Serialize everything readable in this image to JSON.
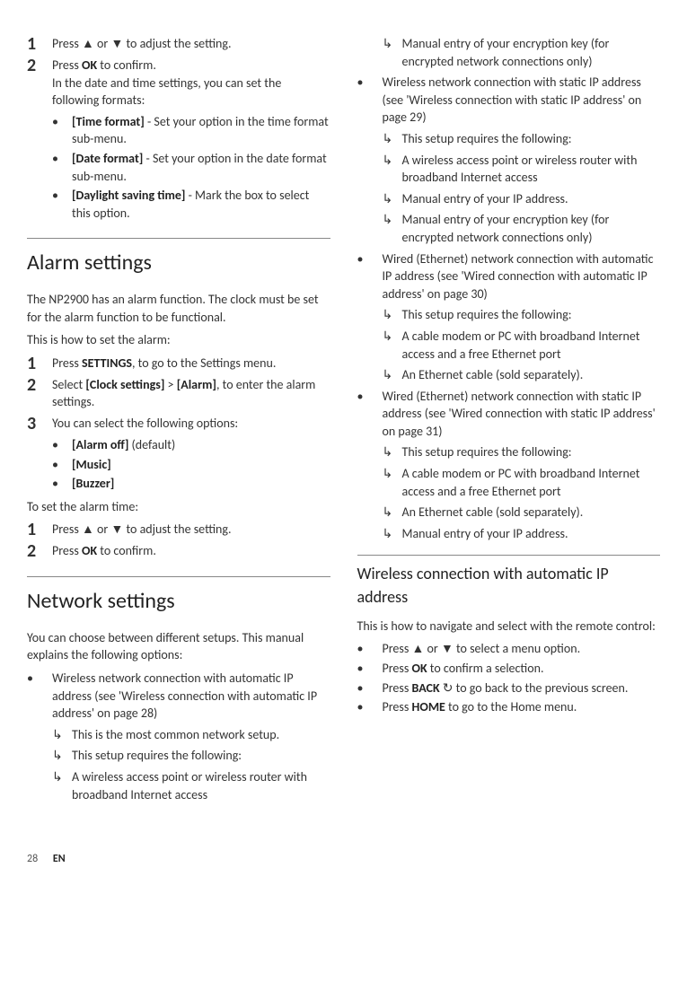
{
  "left": {
    "step1": "Press ▲ or ▼ to adjust the setting.",
    "step2_line1_a": "Press ",
    "step2_ok": "OK",
    "step2_line1_b": " to confirm.",
    "step2_line2": "In the date and time settings, you can set the following formats:",
    "tf_label": "[Time format]",
    "tf_rest": " - Set your option in the time format sub-menu.",
    "df_label": "[Date format]",
    "df_rest": " - Set your option in the date format sub-menu.",
    "dst_label": "[Daylight saving time]",
    "dst_rest": " - Mark the box to select this option.",
    "alarm_heading": "Alarm settings",
    "alarm_intro": "The NP2900 has an alarm function. The clock must be set for the alarm function to be functional.",
    "alarm_how": "This is how to set the alarm:",
    "a1_a": "Press ",
    "a1_b": "SETTINGS",
    "a1_c": ", to go to the Settings menu.",
    "a2_a": "Select ",
    "a2_b": "[Clock settings]",
    "a2_c": " > ",
    "a2_d": "[Alarm]",
    "a2_e": ", to enter the alarm settings.",
    "a3": "You can select the following options:",
    "a3_1a": "[Alarm off]",
    "a3_1b": " (default)",
    "a3_2": "[Music]",
    "a3_3": "[Buzzer]",
    "set_time": "To set the alarm time:",
    "t1": "Press ▲ or ▼ to adjust the setting.",
    "t2_a": "Press ",
    "t2_b": "OK",
    "t2_c": " to confirm.",
    "net_heading": "Network settings",
    "net_intro": "You can choose between different setups. This manual explains the following options:",
    "n1": "Wireless network connection with automatic IP address (see 'Wireless connection with automatic IP address' on page 28)",
    "n1_a": "This is the most common network setup.",
    "n1_b": "This setup requires the following:",
    "n1_c": "A wireless access point or wireless router with broadband Internet access"
  },
  "right": {
    "r0": "Manual entry of your encryption key (for encrypted network connections only)",
    "r1": "Wireless network connection with static IP address (see 'Wireless connection with static IP address' on page 29)",
    "r1_a": "This setup requires the following:",
    "r1_b": "A wireless access point or wireless router with broadband Internet access",
    "r1_c": "Manual entry of your IP address.",
    "r1_d": "Manual entry of your encryption key (for encrypted network connections only)",
    "r2": "Wired (Ethernet) network connection with automatic IP address (see 'Wired connection with automatic IP address' on page 30)",
    "r2_a": "This setup requires the following:",
    "r2_b": "A cable modem or PC with broadband Internet access and a free Ethernet port",
    "r2_c": "An Ethernet cable (sold separately).",
    "r3": "Wired (Ethernet) network connection with static IP address (see 'Wired connection with static IP address' on page 31)",
    "r3_a": "This setup requires the following:",
    "r3_b": "A cable modem or PC with broadband Internet access and a free Ethernet port",
    "r3_c": "An Ethernet cable (sold separately).",
    "r3_d": "Manual entry of your IP address.",
    "wc_heading": "Wireless connection with automatic IP address",
    "wc_intro": "This is how to navigate and select with the remote control:",
    "wc_1": "Press ▲ or ▼ to select a menu option.",
    "wc_2a": "Press ",
    "wc_2b": "OK",
    "wc_2c": " to confirm a selection.",
    "wc_3a": "Press ",
    "wc_3b": "BACK",
    "wc_3c": " ↻ to go back to the previous screen.",
    "wc_4a": "Press ",
    "wc_4b": "HOME",
    "wc_4c": " to go to the Home menu."
  },
  "footer": {
    "page": "28",
    "lang": "EN"
  }
}
